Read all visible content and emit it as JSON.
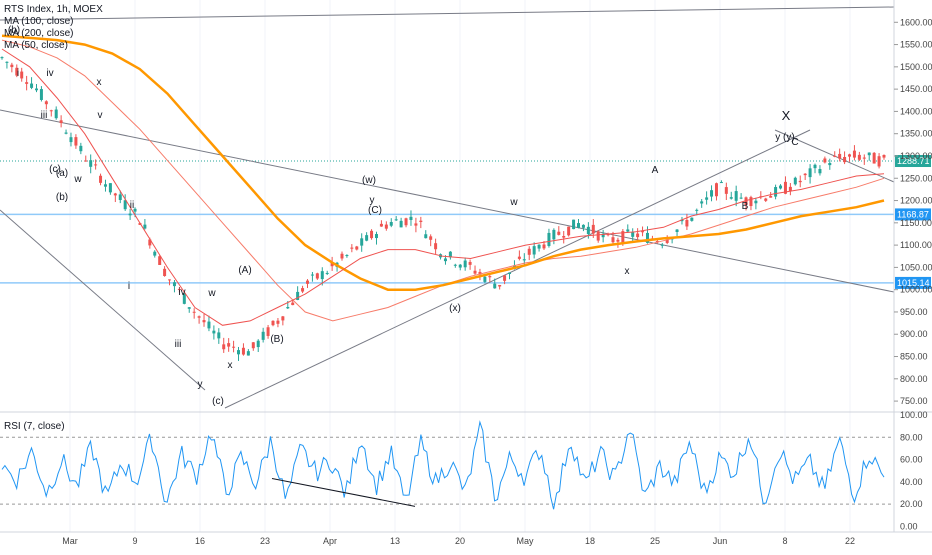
{
  "header": {
    "title": "RTS Index, 1h, MOEX",
    "ma_labels": [
      "MA (100, close)",
      "MA (200, close)",
      "MA (50, close)"
    ],
    "rsi_label": "RSI (7, close)"
  },
  "chart_data": [
    {
      "type": "line",
      "title": "RTS Index, 1h, MOEX",
      "ylim": [
        730,
        1650
      ],
      "yticks": [
        750,
        800,
        850,
        900,
        950,
        1000,
        1050,
        1100,
        1150,
        1200,
        1250,
        1300,
        1350,
        1400,
        1450,
        1500,
        1550,
        1600,
        1650
      ],
      "xticks": [
        "Mar",
        "9",
        "16",
        "23",
        "Apr",
        "13",
        "20",
        "May",
        "18",
        "25",
        "Jun",
        "8",
        "22"
      ],
      "price_labels": {
        "last": "1288.71",
        "upper_level": "1168.87",
        "lower_level": "1015.14"
      },
      "horizontal_levels": [
        1288.71,
        1168.87,
        1015.14
      ],
      "colors": {
        "price": "#26a69a",
        "ma100": "#f77c6a",
        "ma200": "#ff9800",
        "ma50": "#ef5350",
        "rsi": "#2196f3",
        "level": "#90caf9"
      },
      "series": [
        {
          "name": "MA (100, close)",
          "values": [
            1560,
            1545,
            1520,
            1480,
            1420,
            1360,
            1290,
            1220,
            1150,
            1080,
            1010,
            950,
            930,
            945,
            960,
            985,
            1010,
            1030,
            1045,
            1060,
            1070,
            1075,
            1085,
            1095,
            1110,
            1125,
            1145,
            1165,
            1185,
            1200,
            1215,
            1230,
            1250
          ]
        },
        {
          "name": "MA (200, close)",
          "values": [
            1570,
            1565,
            1560,
            1550,
            1530,
            1495,
            1440,
            1370,
            1300,
            1230,
            1160,
            1100,
            1060,
            1025,
            1000,
            1000,
            1010,
            1025,
            1040,
            1055,
            1075,
            1090,
            1100,
            1108,
            1115,
            1120,
            1125,
            1135,
            1150,
            1165,
            1175,
            1185,
            1200
          ]
        },
        {
          "name": "MA (50, close)",
          "values": [
            1540,
            1500,
            1430,
            1350,
            1250,
            1150,
            1050,
            960,
            920,
            930,
            960,
            990,
            1030,
            1070,
            1090,
            1090,
            1075,
            1070,
            1085,
            1100,
            1110,
            1120,
            1125,
            1130,
            1140,
            1165,
            1180,
            1200,
            1215,
            1225,
            1240,
            1255,
            1260
          ]
        },
        {
          "name": "price",
          "values": [
            1520,
            1470,
            1390,
            1300,
            1220,
            1160,
            1030,
            950,
            880,
            860,
            930,
            1010,
            1050,
            1100,
            1150,
            1160,
            1080,
            1050,
            1010,
            1075,
            1120,
            1150,
            1110,
            1125,
            1110,
            1160,
            1230,
            1200,
            1215,
            1245,
            1290,
            1300,
            1288.71
          ]
        }
      ]
    },
    {
      "type": "line",
      "title": "RSI (7, close)",
      "ylim": [
        -5,
        100
      ],
      "yticks": [
        0,
        20,
        40,
        60,
        80,
        100
      ],
      "ytick_labels": [
        "0.00",
        "20.00",
        "40.00",
        "60.00",
        "80.00",
        "100.00"
      ],
      "dashed_levels": [
        20,
        80
      ],
      "series": [
        {
          "name": "RSI (7, close)",
          "values": [
            55,
            42,
            68,
            30,
            60,
            35,
            72,
            25,
            58,
            40,
            80,
            20,
            65,
            45,
            85,
            30,
            62,
            38,
            78,
            22,
            70,
            48,
            60,
            28,
            82,
            35,
            66,
            20,
            75,
            40,
            58,
            30,
            88,
            25,
            62,
            44,
            70,
            18,
            80,
            36,
            66,
            42,
            90,
            26,
            54,
            38,
            76,
            30,
            62,
            48,
            84,
            22,
            70,
            40,
            58,
            32,
            78,
            28,
            66,
            44
          ]
        }
      ]
    }
  ],
  "wave_labels": [
    "(b)",
    "i",
    "iv",
    "x",
    "iii",
    "v",
    "(c)",
    "(a)",
    "w",
    "(b)",
    "ii",
    "i",
    "iv",
    "w",
    "(A)",
    "iii",
    "(B)",
    "x",
    "y",
    "(c)",
    "(w)",
    "y",
    "(C)",
    "w",
    "(x)",
    "x",
    "A",
    "B",
    "C",
    "X",
    "y (y)"
  ]
}
